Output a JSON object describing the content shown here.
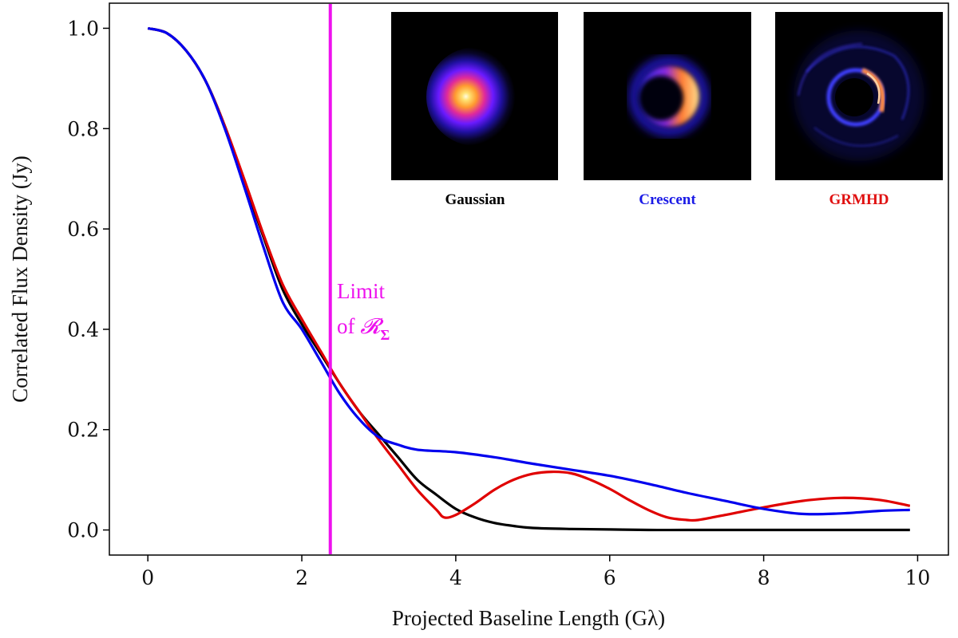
{
  "chart_data": {
    "type": "line",
    "title": "",
    "xlabel": "Projected Baseline Length (Gλ)",
    "ylabel": "Correlated Flux Density (Jy)",
    "xlim": [
      -0.5,
      10.4
    ],
    "ylim": [
      -0.05,
      1.05
    ],
    "xticks": [
      "0",
      "2",
      "4",
      "6",
      "8",
      "10"
    ],
    "yticks": [
      "0.0",
      "0.2",
      "0.4",
      "0.6",
      "0.8",
      "1.0"
    ],
    "grid": false,
    "series": [
      {
        "name": "Gaussian",
        "color": "#000000",
        "x": [
          0,
          0.25,
          0.5,
          0.75,
          1.0,
          1.25,
          1.5,
          1.75,
          2.0,
          2.25,
          2.5,
          2.75,
          3.0,
          3.25,
          3.5,
          3.75,
          4.0,
          4.25,
          4.5,
          4.75,
          5.0,
          5.5,
          6.0,
          6.5,
          7.0,
          8.0,
          9.0,
          9.9
        ],
        "y": [
          1.0,
          0.99,
          0.955,
          0.895,
          0.805,
          0.695,
          0.585,
          0.48,
          0.41,
          0.35,
          0.29,
          0.235,
          0.19,
          0.145,
          0.1,
          0.07,
          0.042,
          0.025,
          0.014,
          0.008,
          0.004,
          0.002,
          0.001,
          0.0,
          0.0,
          0.0,
          0.0,
          0.0
        ]
      },
      {
        "name": "Crescent",
        "color": "#0000ee",
        "x": [
          0,
          0.25,
          0.5,
          0.75,
          1.0,
          1.25,
          1.5,
          1.75,
          2.0,
          2.25,
          2.5,
          2.75,
          3.0,
          3.25,
          3.5,
          4.0,
          4.5,
          5.0,
          5.5,
          6.0,
          6.5,
          7.0,
          7.5,
          8.0,
          8.5,
          9.0,
          9.5,
          9.9
        ],
        "y": [
          1.0,
          0.99,
          0.955,
          0.895,
          0.8,
          0.685,
          0.565,
          0.455,
          0.4,
          0.335,
          0.27,
          0.22,
          0.185,
          0.17,
          0.16,
          0.155,
          0.145,
          0.132,
          0.12,
          0.108,
          0.092,
          0.074,
          0.058,
          0.042,
          0.032,
          0.033,
          0.038,
          0.04
        ]
      },
      {
        "name": "GRMHD",
        "color": "#e00000",
        "x": [
          0,
          0.25,
          0.5,
          0.75,
          1.0,
          1.25,
          1.5,
          1.75,
          2.0,
          2.25,
          2.5,
          2.75,
          3.0,
          3.25,
          3.5,
          3.75,
          3.85,
          4.0,
          4.25,
          4.5,
          4.75,
          5.0,
          5.25,
          5.5,
          5.75,
          6.0,
          6.25,
          6.5,
          6.75,
          7.0,
          7.15,
          7.5,
          8.0,
          8.5,
          9.0,
          9.5,
          9.9
        ],
        "y": [
          1.0,
          0.99,
          0.955,
          0.895,
          0.805,
          0.7,
          0.59,
          0.49,
          0.42,
          0.355,
          0.29,
          0.235,
          0.18,
          0.13,
          0.08,
          0.04,
          0.025,
          0.03,
          0.053,
          0.08,
          0.1,
          0.112,
          0.116,
          0.113,
          0.1,
          0.082,
          0.06,
          0.04,
          0.025,
          0.02,
          0.02,
          0.03,
          0.045,
          0.058,
          0.064,
          0.06,
          0.048
        ]
      }
    ],
    "vline": {
      "x": 2.37,
      "color": "#ee11ee"
    }
  },
  "annotation": {
    "line1": "Limit",
    "line2_prefix": "of ",
    "line2_script": "𝓡",
    "line2_sub": "Σ"
  },
  "insets": [
    {
      "label": "Gaussian",
      "color": "#000000"
    },
    {
      "label": "Crescent",
      "color": "#1a1ae6"
    },
    {
      "label": "GRMHD",
      "color": "#e01010"
    }
  ]
}
